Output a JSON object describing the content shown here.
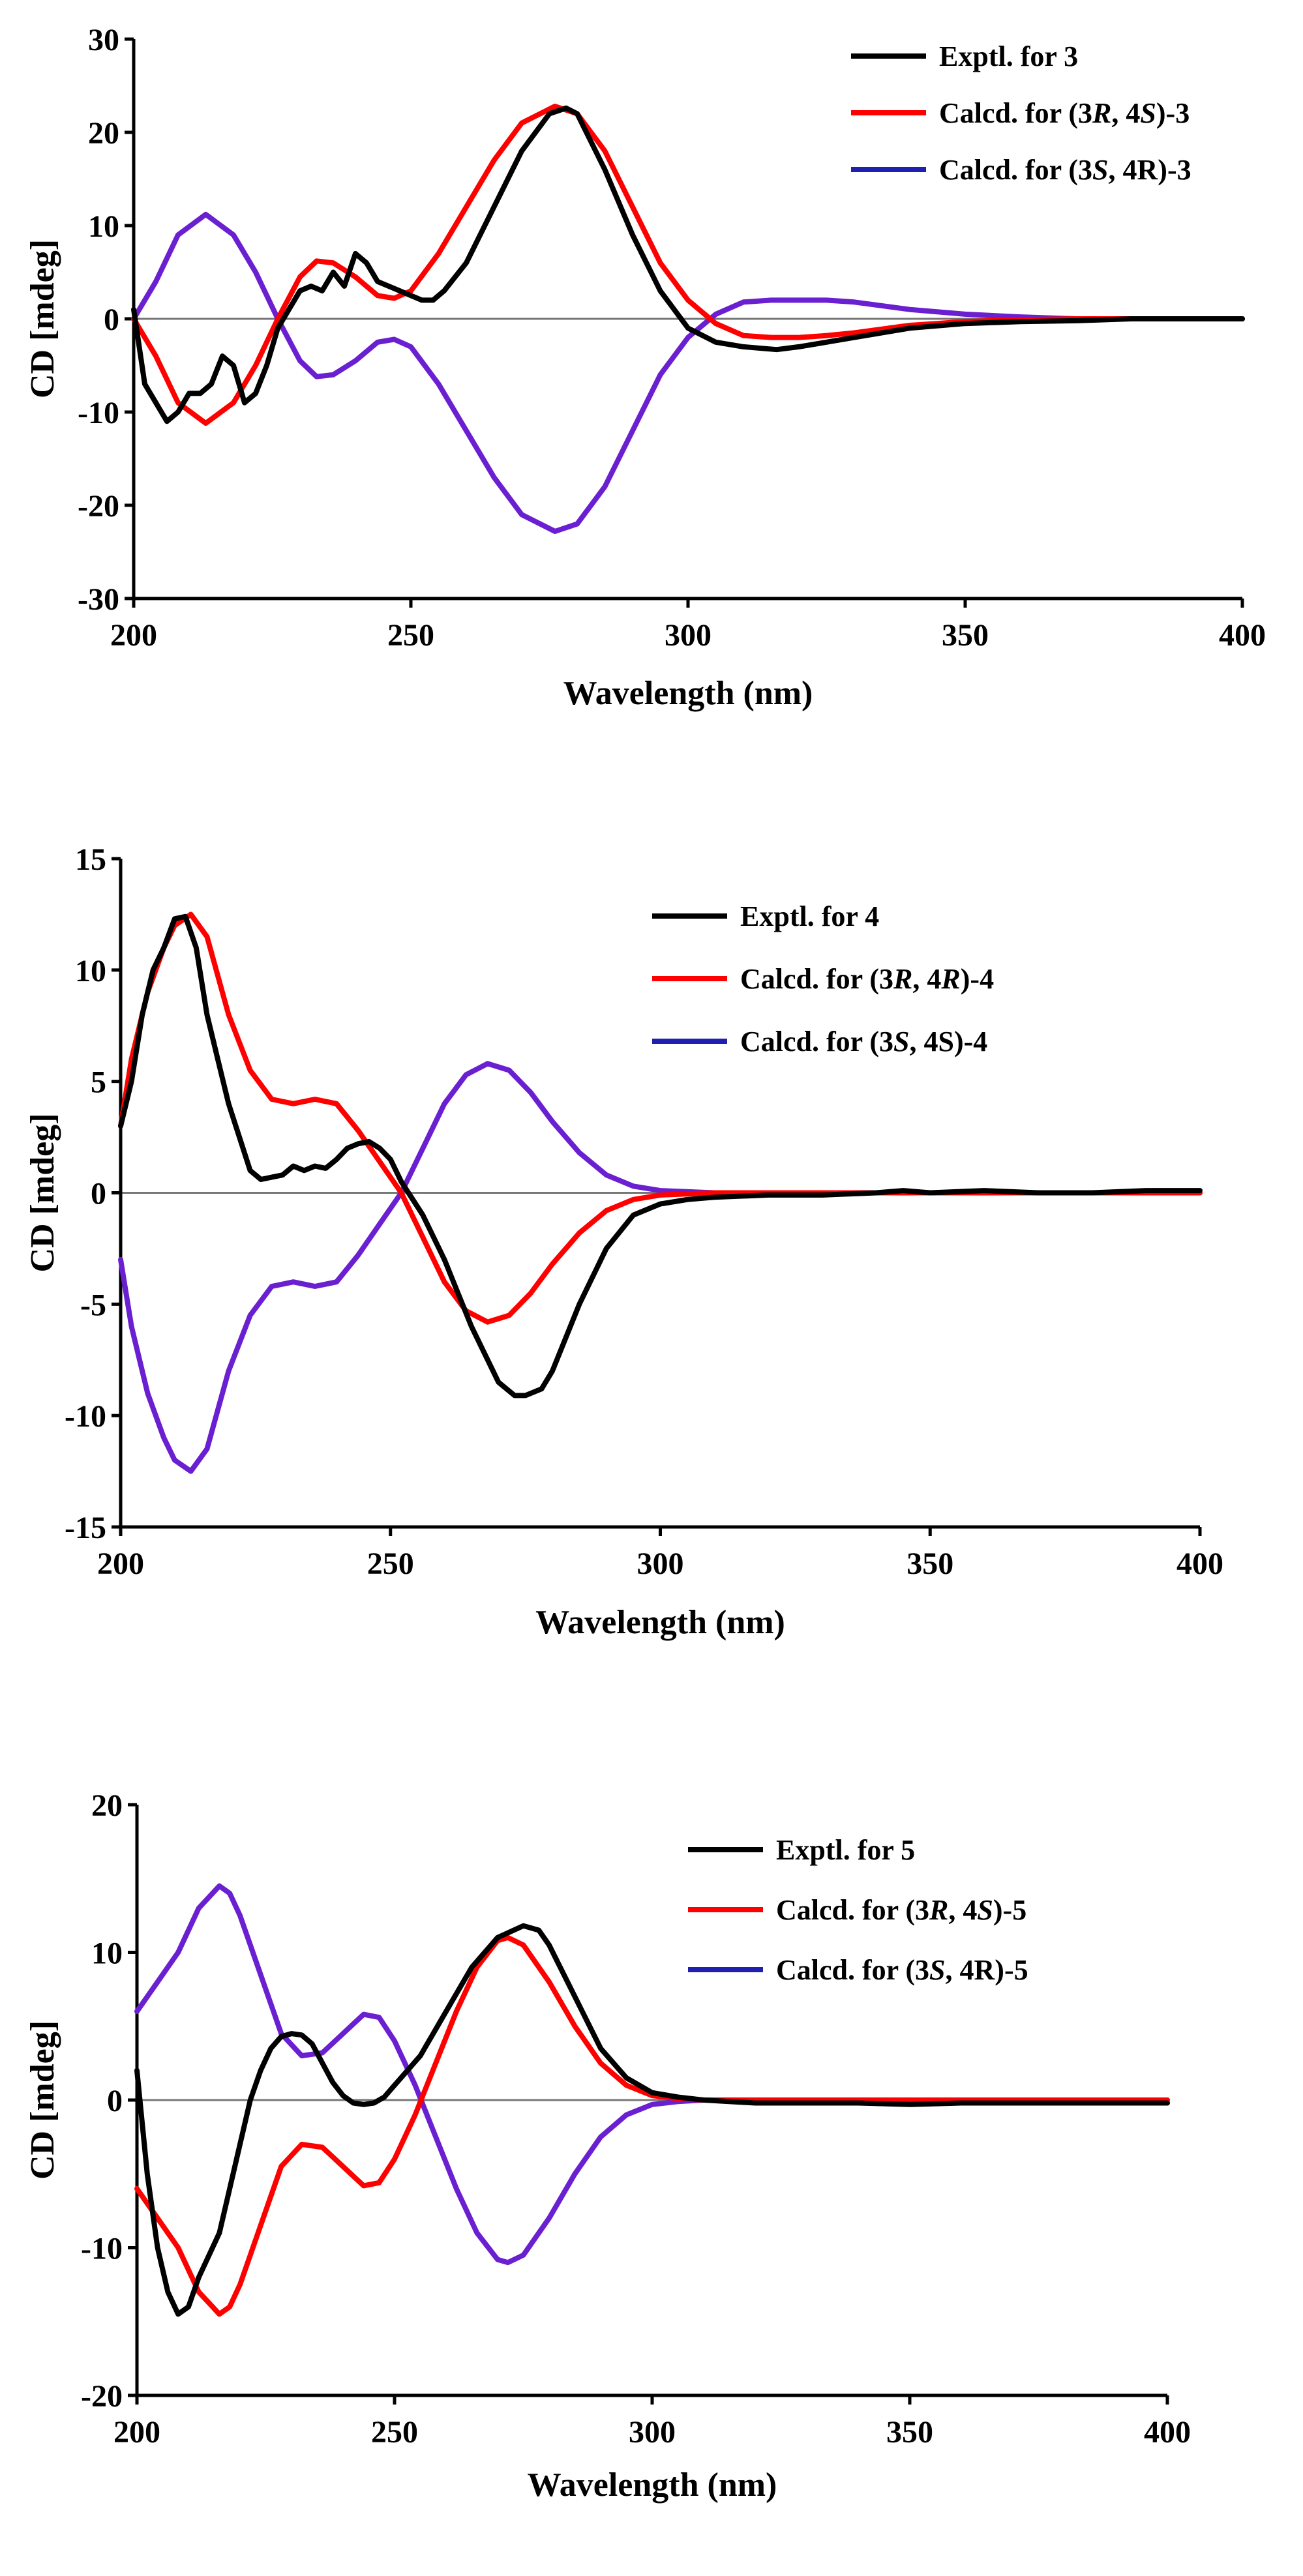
{
  "colors": {
    "expt": "#000000",
    "calcd_a": "#ff0000",
    "calcd_b": "#6a1fd1",
    "legend_b": "#1f1fb0",
    "zero_line": "#777777"
  },
  "chart_data": [
    {
      "type": "line",
      "title": "",
      "xlabel": "Wavelength (nm)",
      "ylabel": "CD [mdeg]",
      "xlim": [
        200,
        400
      ],
      "ylim": [
        -30,
        30
      ],
      "xticks": [
        "200",
        "250",
        "300",
        "350",
        "400"
      ],
      "yticks": [
        "30",
        "20",
        "10",
        "0",
        "-10",
        "-20",
        "-30"
      ],
      "legend_position": "top-right",
      "series": [
        {
          "name": "Exptl. for 3",
          "color": "#000000",
          "x": [
            200,
            202,
            204,
            206,
            208,
            210,
            212,
            214,
            216,
            218,
            220,
            222,
            224,
            226,
            228,
            230,
            232,
            234,
            236,
            238,
            240,
            242,
            244,
            246,
            248,
            250,
            252,
            254,
            256,
            260,
            265,
            270,
            275,
            278,
            280,
            285,
            290,
            295,
            300,
            305,
            310,
            316,
            320,
            330,
            340,
            350,
            360,
            370,
            380,
            390,
            400
          ],
          "y": [
            1,
            -7,
            -9,
            -11,
            -10,
            -8,
            -8,
            -7,
            -4,
            -5,
            -9,
            -8,
            -5,
            -1,
            1,
            3,
            3.5,
            3,
            5,
            3.5,
            7,
            6,
            4,
            3.5,
            3,
            2.5,
            2,
            2,
            3,
            6,
            12,
            18,
            22,
            22.6,
            22,
            16,
            9,
            3,
            -1,
            -2.5,
            -3,
            -3.3,
            -3,
            -2,
            -1,
            -0.5,
            -0.3,
            -0.2,
            0,
            0,
            0
          ]
        },
        {
          "name": "Calcd. for (3R, 4S)-3",
          "color": "#ff0000",
          "x": [
            200,
            204,
            208,
            213,
            218,
            222,
            226,
            230,
            233,
            236,
            240,
            244,
            247,
            250,
            255,
            260,
            265,
            270,
            276,
            280,
            285,
            290,
            295,
            300,
            305,
            310,
            315,
            320,
            325,
            330,
            340,
            350,
            360,
            370,
            380,
            390,
            400
          ],
          "y": [
            0,
            -4,
            -9,
            -11.2,
            -9,
            -5,
            0,
            4.5,
            6.2,
            6,
            4.5,
            2.5,
            2.2,
            3,
            7,
            12,
            17,
            21,
            22.8,
            22,
            18,
            12,
            6,
            2,
            -0.5,
            -1.8,
            -2,
            -2,
            -1.8,
            -1.5,
            -0.7,
            -0.3,
            -0.1,
            0,
            0,
            0,
            0
          ]
        },
        {
          "name": "Calcd. for (3S, 4R)-3",
          "color": "#6a1fd1",
          "x": [
            200,
            204,
            208,
            213,
            218,
            222,
            226,
            230,
            233,
            236,
            240,
            244,
            247,
            250,
            255,
            260,
            265,
            270,
            276,
            280,
            285,
            290,
            295,
            300,
            305,
            310,
            315,
            320,
            325,
            330,
            340,
            350,
            360,
            370,
            380,
            390,
            400
          ],
          "y": [
            0,
            4,
            9,
            11.2,
            9,
            5,
            0,
            -4.5,
            -6.2,
            -6,
            -4.5,
            -2.5,
            -2.2,
            -3,
            -7,
            -12,
            -17,
            -21,
            -22.8,
            -22,
            -18,
            -12,
            -6,
            -2,
            0.5,
            1.8,
            2,
            2,
            2,
            1.8,
            1,
            0.5,
            0.2,
            0,
            0,
            0,
            0
          ]
        }
      ]
    },
    {
      "type": "line",
      "title": "",
      "xlabel": "Wavelength (nm)",
      "ylabel": "CD [mdeg]",
      "xlim": [
        200,
        400
      ],
      "ylim": [
        -15,
        15
      ],
      "xticks": [
        "200",
        "250",
        "300",
        "350",
        "400"
      ],
      "yticks": [
        "15",
        "10",
        "5",
        "0",
        "-5",
        "-10",
        "-15"
      ],
      "legend_position": "top-right",
      "series": [
        {
          "name": "Exptl. for 4",
          "color": "#000000",
          "x": [
            200,
            202,
            204,
            206,
            208,
            210,
            212,
            214,
            216,
            218,
            220,
            222,
            224,
            226,
            228,
            230,
            232,
            234,
            236,
            238,
            240,
            242,
            244,
            246,
            248,
            250,
            252,
            256,
            260,
            265,
            270,
            273,
            275,
            278,
            280,
            285,
            290,
            295,
            300,
            305,
            310,
            320,
            330,
            340,
            345,
            350,
            360,
            370,
            380,
            390,
            400
          ],
          "y": [
            3,
            5,
            8,
            10,
            11,
            12.3,
            12.4,
            11,
            8,
            6,
            4,
            2.5,
            1,
            0.6,
            0.7,
            0.8,
            1.2,
            1,
            1.2,
            1.1,
            1.5,
            2,
            2.2,
            2.3,
            2,
            1.5,
            0.5,
            -1,
            -3,
            -6,
            -8.5,
            -9.1,
            -9.1,
            -8.8,
            -8,
            -5,
            -2.5,
            -1,
            -0.5,
            -0.3,
            -0.2,
            -0.1,
            -0.1,
            0,
            0.1,
            0,
            0.1,
            0,
            0,
            0.1,
            0.1
          ]
        },
        {
          "name": "Calcd. for (3R, 4R)-4",
          "color": "#ff0000",
          "x": [
            200,
            202,
            205,
            208,
            210,
            213,
            216,
            220,
            224,
            228,
            232,
            236,
            240,
            244,
            248,
            252,
            256,
            260,
            264,
            268,
            272,
            276,
            280,
            285,
            290,
            295,
            300,
            310,
            320,
            340,
            360,
            380,
            400
          ],
          "y": [
            3,
            6,
            9,
            11,
            12,
            12.5,
            11.5,
            8,
            5.5,
            4.2,
            4,
            4.2,
            4,
            2.8,
            1.4,
            0,
            -2,
            -4,
            -5.3,
            -5.8,
            -5.5,
            -4.5,
            -3.2,
            -1.8,
            -0.8,
            -0.3,
            -0.1,
            0,
            0,
            0,
            0,
            0,
            0
          ]
        },
        {
          "name": "Calcd. for (3S, 4S)-4",
          "color": "#6a1fd1",
          "x": [
            200,
            202,
            205,
            208,
            210,
            213,
            216,
            220,
            224,
            228,
            232,
            236,
            240,
            244,
            248,
            252,
            256,
            260,
            264,
            268,
            272,
            276,
            280,
            285,
            290,
            295,
            300,
            310,
            320,
            340,
            360,
            380,
            400
          ],
          "y": [
            -3,
            -6,
            -9,
            -11,
            -12,
            -12.5,
            -11.5,
            -8,
            -5.5,
            -4.2,
            -4,
            -4.2,
            -4,
            -2.8,
            -1.4,
            0,
            2,
            4,
            5.3,
            5.8,
            5.5,
            4.5,
            3.2,
            1.8,
            0.8,
            0.3,
            0.1,
            0,
            0,
            0,
            0,
            0,
            0
          ]
        }
      ]
    },
    {
      "type": "line",
      "title": "",
      "xlabel": "Wavelength (nm)",
      "ylabel": "CD [mdeg]",
      "xlim": [
        200,
        400
      ],
      "ylim": [
        -20,
        20
      ],
      "xticks": [
        "200",
        "250",
        "300",
        "350",
        "400"
      ],
      "yticks": [
        "20",
        "10",
        "0",
        "-10",
        "-20"
      ],
      "legend_position": "top-right",
      "series": [
        {
          "name": "Exptl. for 5",
          "color": "#000000",
          "x": [
            200,
            202,
            204,
            206,
            208,
            210,
            212,
            214,
            216,
            218,
            220,
            222,
            224,
            226,
            228,
            230,
            232,
            234,
            236,
            238,
            240,
            242,
            244,
            246,
            248,
            250,
            255,
            260,
            265,
            270,
            275,
            278,
            280,
            285,
            290,
            295,
            300,
            305,
            310,
            320,
            330,
            340,
            350,
            360,
            370,
            380,
            390,
            400
          ],
          "y": [
            2,
            -5,
            -10,
            -13,
            -14.5,
            -14,
            -12,
            -10.5,
            -9,
            -6,
            -3,
            0,
            2,
            3.5,
            4.3,
            4.5,
            4.4,
            3.8,
            2.5,
            1.2,
            0.3,
            -0.2,
            -0.3,
            -0.2,
            0.2,
            1,
            3,
            6,
            9,
            11,
            11.8,
            11.5,
            10.5,
            7,
            3.5,
            1.5,
            0.5,
            0.2,
            0,
            -0.2,
            -0.2,
            -0.2,
            -0.3,
            -0.2,
            -0.2,
            -0.2,
            -0.2,
            -0.2
          ]
        },
        {
          "name": "Calcd. for (3R, 4S)-5",
          "color": "#ff0000",
          "x": [
            200,
            204,
            208,
            212,
            216,
            218,
            220,
            224,
            228,
            232,
            236,
            240,
            244,
            247,
            250,
            254,
            258,
            262,
            266,
            270,
            272,
            275,
            280,
            285,
            290,
            295,
            300,
            305,
            310,
            320,
            340,
            360,
            380,
            400
          ],
          "y": [
            -6,
            -8,
            -10,
            -13,
            -14.5,
            -14,
            -12.5,
            -8.5,
            -4.5,
            -3,
            -3.2,
            -4.5,
            -5.8,
            -5.6,
            -4,
            -1,
            2.5,
            6,
            9,
            10.8,
            11,
            10.5,
            8,
            5,
            2.5,
            1,
            0.3,
            0.1,
            0,
            0,
            0,
            0,
            0,
            0
          ]
        },
        {
          "name": "Calcd. for (3S, 4R)-5",
          "color": "#6a1fd1",
          "x": [
            200,
            204,
            208,
            212,
            216,
            218,
            220,
            224,
            228,
            232,
            236,
            240,
            244,
            247,
            250,
            254,
            258,
            262,
            266,
            270,
            272,
            275,
            280,
            285,
            290,
            295,
            300,
            305,
            310,
            320,
            340,
            360,
            380,
            400
          ],
          "y": [
            6,
            8,
            10,
            13,
            14.5,
            14,
            12.5,
            8.5,
            4.5,
            3,
            3.2,
            4.5,
            5.8,
            5.6,
            4,
            1,
            -2.5,
            -6,
            -9,
            -10.8,
            -11,
            -10.5,
            -8,
            -5,
            -2.5,
            -1,
            -0.3,
            -0.1,
            0,
            0,
            0,
            0,
            0,
            0
          ]
        }
      ]
    }
  ],
  "legends": [
    [
      {
        "parts": [
          "Exptl. for 3"
        ],
        "italic_flags": [
          false
        ]
      },
      {
        "parts": [
          "Calcd. for (3",
          "R",
          ", 4",
          "S",
          ")-3"
        ],
        "italic_flags": [
          false,
          true,
          false,
          true,
          false
        ]
      },
      {
        "parts": [
          "Calcd. for (3",
          "S",
          ", 4R)-3"
        ],
        "italic_flags": [
          false,
          true,
          false
        ]
      }
    ],
    [
      {
        "parts": [
          "Exptl. for 4"
        ],
        "italic_flags": [
          false
        ]
      },
      {
        "parts": [
          "Calcd. for (3",
          "R",
          ", 4",
          "R",
          ")-4"
        ],
        "italic_flags": [
          false,
          true,
          false,
          true,
          false
        ]
      },
      {
        "parts": [
          "Calcd. for (3",
          "S",
          ", 4S)-4"
        ],
        "italic_flags": [
          false,
          true,
          false
        ]
      }
    ],
    [
      {
        "parts": [
          "Exptl. for 5"
        ],
        "italic_flags": [
          false
        ]
      },
      {
        "parts": [
          "Calcd. for (3",
          "R",
          ", 4",
          "S",
          ")-5"
        ],
        "italic_flags": [
          false,
          true,
          false,
          true,
          false
        ]
      },
      {
        "parts": [
          "Calcd. for (3",
          "S",
          ", 4R)-5"
        ],
        "italic_flags": [
          false,
          true,
          false
        ]
      }
    ]
  ]
}
